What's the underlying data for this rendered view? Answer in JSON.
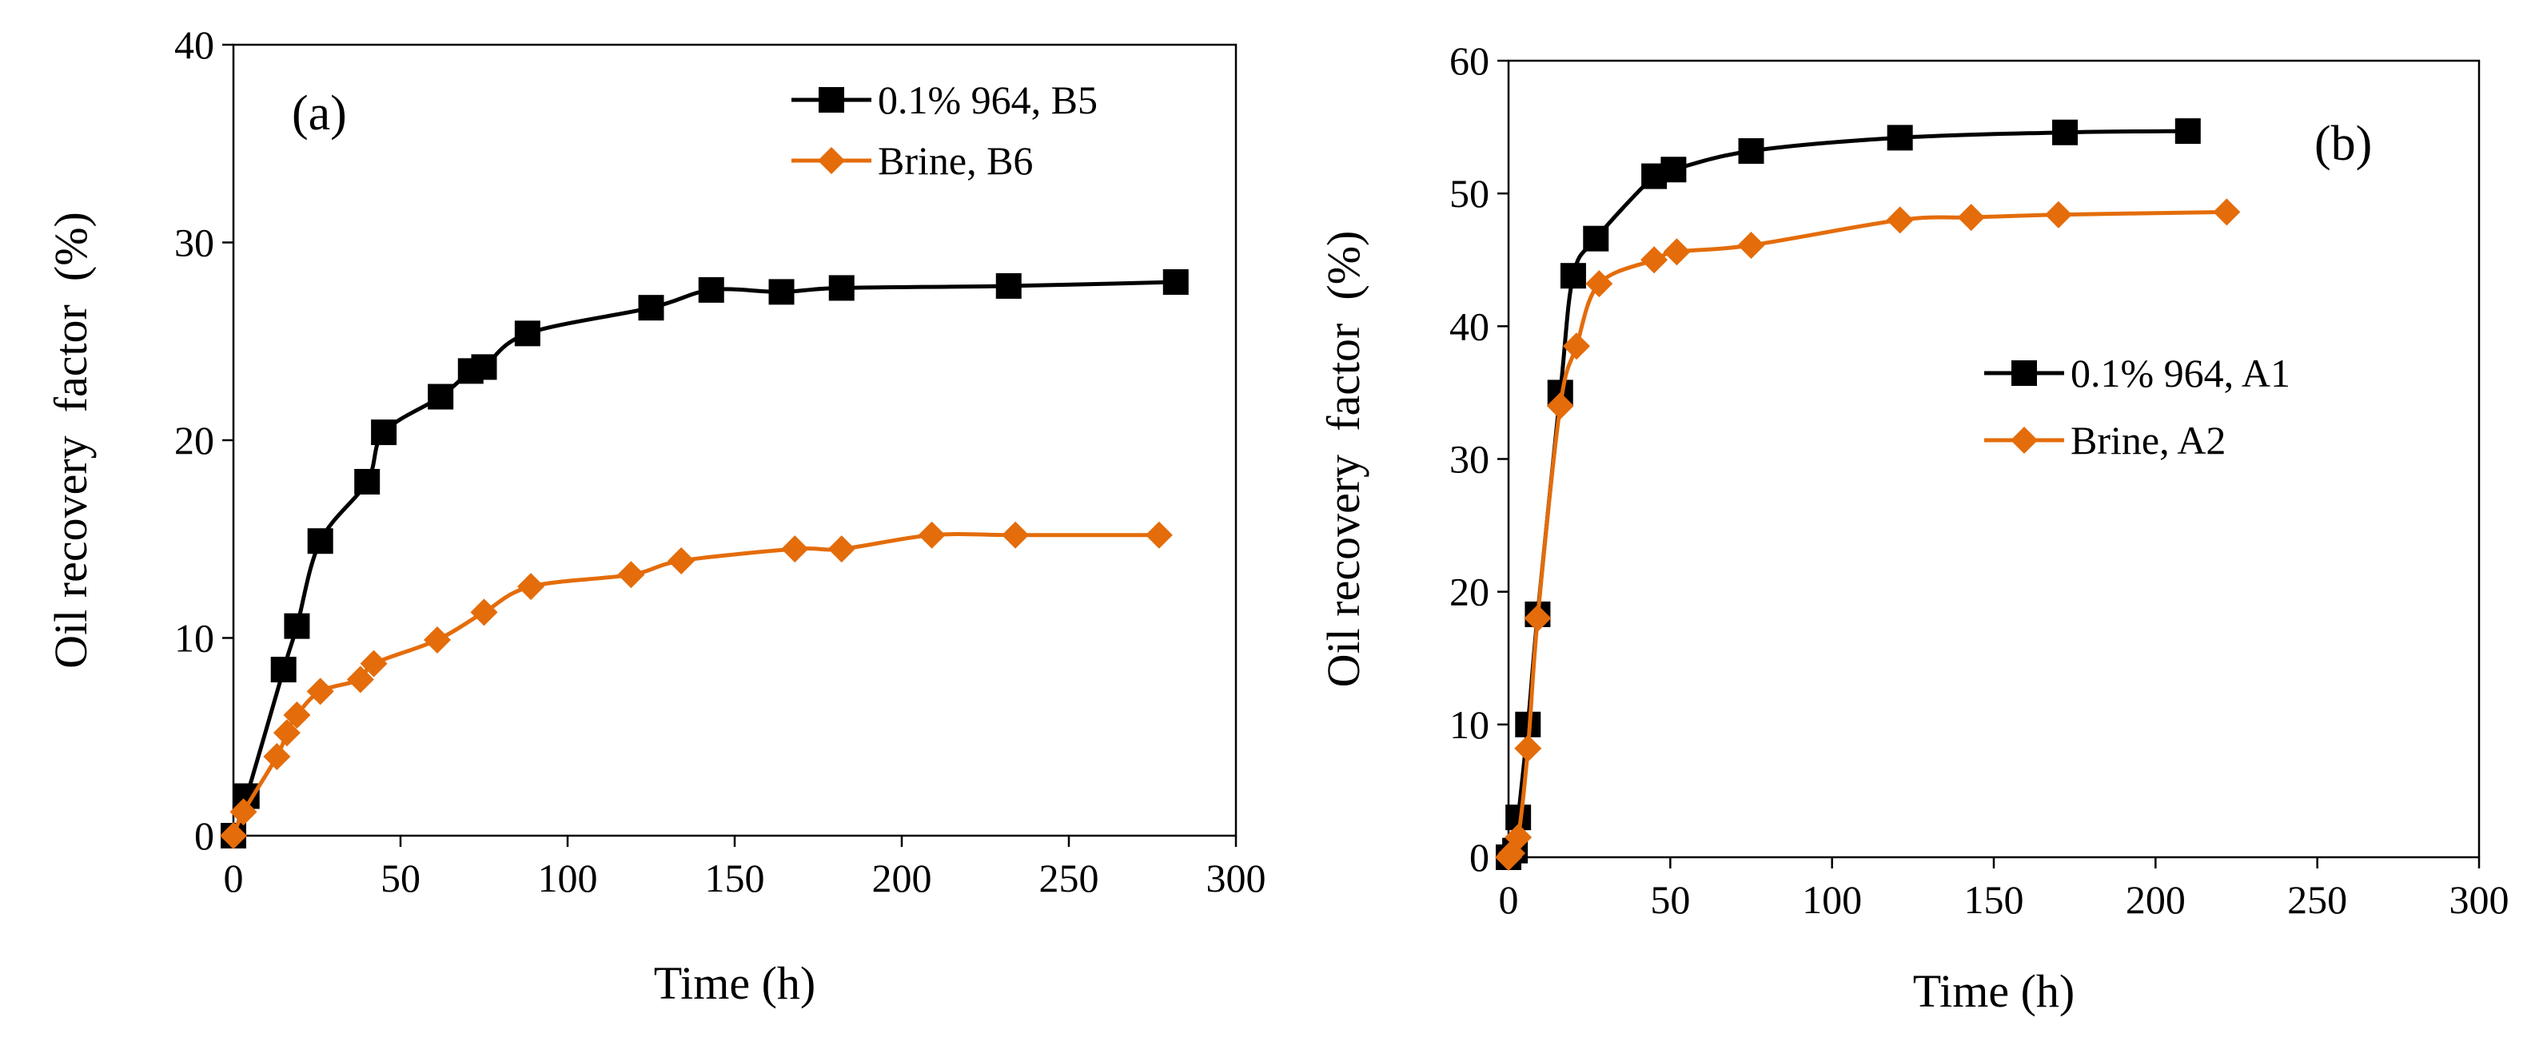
{
  "chart_data": [
    {
      "type": "line",
      "panel_label": "(a)",
      "xlabel": "Time (h)",
      "ylabel": "Oil recovery  factor  (%)",
      "xlim": [
        0,
        300
      ],
      "ylim": [
        0,
        40
      ],
      "xticks": [
        "0",
        "50",
        "100",
        "150",
        "200",
        "250",
        "300"
      ],
      "yticks": [
        "0",
        "10",
        "20",
        "30",
        "40"
      ],
      "grid": false,
      "legend_position": "top-right",
      "series": [
        {
          "name": "0.1% 964, B5",
          "color": "#000000",
          "marker": "square",
          "x": [
            0,
            4,
            15,
            19,
            26,
            40,
            45,
            62,
            71,
            75,
            88,
            125,
            143,
            164,
            182,
            232,
            282
          ],
          "y": [
            0,
            2,
            8.4,
            10.6,
            14.9,
            17.9,
            20.4,
            22.2,
            23.5,
            23.7,
            25.4,
            26.7,
            27.6,
            27.5,
            27.7,
            27.8,
            28
          ]
        },
        {
          "name": "Brine, B6",
          "color": "#E46C0A",
          "marker": "diamond",
          "x": [
            0,
            3,
            13,
            16,
            19,
            26,
            38,
            42,
            61,
            75,
            89,
            119,
            134,
            168,
            182,
            209,
            234,
            277
          ],
          "y": [
            0,
            1.2,
            4,
            5.2,
            6.1,
            7.3,
            7.9,
            8.7,
            9.9,
            11.3,
            12.6,
            13.2,
            13.9,
            14.5,
            14.5,
            15.2,
            15.2,
            15.2
          ]
        }
      ]
    },
    {
      "type": "line",
      "panel_label": "(b)",
      "xlabel": "Time (h)",
      "ylabel": "Oil recovery  factor  (%)",
      "xlim": [
        0,
        300
      ],
      "ylim": [
        0,
        60
      ],
      "xticks": [
        "0",
        "50",
        "100",
        "150",
        "200",
        "250",
        "300"
      ],
      "yticks": [
        "0",
        "10",
        "20",
        "30",
        "40",
        "50",
        "60"
      ],
      "grid": false,
      "legend_position": "center-right",
      "series": [
        {
          "name": "0.1% 964, A1",
          "color": "#000000",
          "marker": "square",
          "x": [
            0,
            2,
            3,
            6,
            9,
            16,
            20,
            27,
            45,
            51,
            75,
            121,
            172,
            210
          ],
          "y": [
            0,
            0.5,
            3,
            10,
            18.3,
            35,
            43.8,
            46.6,
            51.3,
            51.8,
            53.2,
            54.2,
            54.6,
            54.7
          ]
        },
        {
          "name": "Brine, A2",
          "color": "#E46C0A",
          "marker": "diamond",
          "x": [
            0,
            1,
            3,
            6,
            9,
            16,
            21,
            28,
            45,
            52,
            75,
            121,
            143,
            170,
            222
          ],
          "y": [
            0,
            0.3,
            1.5,
            8.2,
            18,
            34,
            38.5,
            43.2,
            45,
            45.6,
            46.1,
            48,
            48.2,
            48.4,
            48.6
          ]
        }
      ]
    }
  ]
}
